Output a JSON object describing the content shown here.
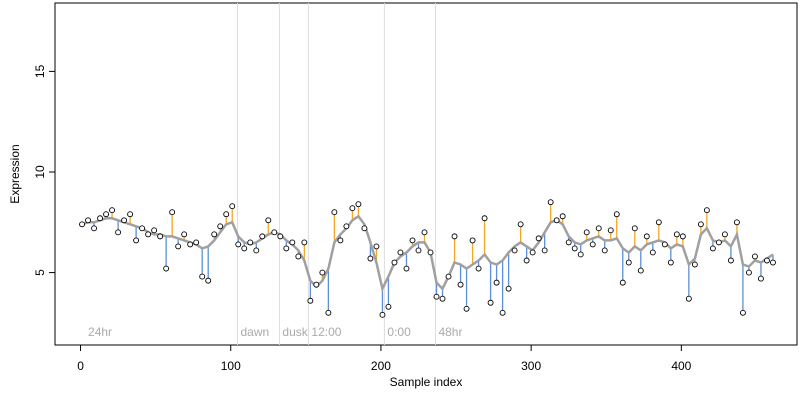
{
  "chart_data": {
    "type": "scatter",
    "xlabel": "Sample index",
    "ylabel": "Expression",
    "xlim": [
      -17,
      477
    ],
    "ylim": [
      1.4,
      18.4
    ],
    "xticks": [
      0,
      100,
      200,
      300,
      400
    ],
    "yticks": [
      5,
      10,
      15
    ],
    "point_color": "#000000",
    "fit_color": "#a0a0a0",
    "above_color": "#f5a623",
    "below_color": "#5b8fd9",
    "marker_color": "#dddddd",
    "markers": [
      {
        "x": 3,
        "label": "24hr",
        "line": false
      },
      {
        "x": 104.5,
        "label": "dawn",
        "line": true
      },
      {
        "x": 132.4,
        "label": "dusk",
        "line": true
      },
      {
        "x": 151.7,
        "label": "12:00",
        "line": true
      },
      {
        "x": 202.3,
        "label": "0:00",
        "line": true
      },
      {
        "x": 236.3,
        "label": "48hr",
        "line": true
      }
    ],
    "x": [
      1,
      5,
      9,
      13,
      17,
      21,
      25,
      29,
      33,
      37,
      41,
      45,
      49,
      53,
      57,
      61,
      65,
      69,
      73,
      77,
      81,
      85,
      89,
      93,
      97,
      101,
      105,
      109,
      113,
      117,
      121,
      125,
      129,
      133,
      137,
      141,
      145,
      149,
      153,
      157,
      161,
      165,
      169,
      173,
      177,
      181,
      185,
      189,
      193,
      197,
      201,
      205,
      209,
      213,
      217,
      221,
      225,
      229,
      233,
      237,
      241,
      245,
      249,
      253,
      257,
      261,
      265,
      269,
      273,
      277,
      281,
      285,
      289,
      293,
      297,
      301,
      305,
      309,
      313,
      317,
      321,
      325,
      329,
      333,
      337,
      341,
      345,
      349,
      353,
      357,
      361,
      365,
      369,
      373,
      377,
      381,
      385,
      389,
      393,
      397,
      401,
      405,
      409,
      413,
      417,
      421,
      425,
      429,
      433,
      437,
      441,
      445,
      449,
      453,
      457,
      461
    ],
    "values": [
      7.4,
      7.6,
      7.2,
      7.7,
      7.9,
      8.1,
      7.0,
      7.6,
      7.9,
      6.6,
      7.2,
      6.9,
      7.1,
      6.8,
      5.2,
      8.0,
      6.3,
      6.9,
      6.4,
      6.5,
      4.8,
      4.6,
      6.9,
      7.3,
      7.9,
      8.3,
      6.4,
      6.2,
      6.5,
      6.1,
      6.8,
      7.6,
      7.0,
      6.8,
      6.2,
      6.5,
      5.8,
      6.5,
      3.6,
      4.4,
      5.0,
      3.0,
      8.0,
      6.6,
      7.3,
      8.2,
      8.4,
      7.2,
      5.7,
      6.3,
      2.9,
      3.3,
      5.5,
      6.0,
      5.2,
      6.6,
      6.1,
      7.0,
      6.0,
      3.8,
      3.7,
      4.8,
      6.8,
      4.4,
      3.2,
      6.6,
      5.2,
      7.7,
      3.5,
      4.5,
      3.0,
      4.2,
      6.1,
      7.4,
      5.6,
      6.0,
      6.7,
      6.1,
      8.5,
      7.6,
      7.8,
      6.5,
      6.2,
      5.9,
      7.0,
      6.4,
      7.2,
      6.1,
      7.1,
      7.9,
      4.5,
      5.5,
      7.2,
      5.1,
      6.8,
      6.0,
      7.5,
      6.4,
      5.5,
      6.9,
      6.8,
      3.7,
      5.4,
      7.4,
      8.1,
      6.2,
      6.5,
      6.9,
      5.6,
      7.5,
      3.0,
      5.0,
      5.8,
      4.7,
      5.6,
      5.5
    ],
    "fit": [
      7.4,
      7.5,
      7.5,
      7.6,
      7.7,
      7.7,
      7.6,
      7.5,
      7.4,
      7.3,
      7.2,
      7.0,
      6.9,
      6.9,
      6.8,
      6.8,
      6.7,
      6.6,
      6.5,
      6.4,
      6.2,
      6.3,
      6.6,
      7.0,
      7.4,
      7.5,
      6.8,
      6.5,
      6.4,
      6.5,
      6.7,
      6.9,
      7.0,
      6.9,
      6.6,
      6.4,
      6.1,
      5.6,
      4.6,
      4.3,
      4.6,
      5.2,
      6.5,
      6.9,
      7.2,
      7.6,
      7.8,
      7.4,
      6.5,
      5.5,
      4.2,
      4.8,
      5.5,
      5.8,
      6.0,
      6.3,
      6.5,
      6.5,
      6.0,
      4.5,
      4.2,
      4.8,
      5.5,
      5.4,
      5.2,
      5.4,
      5.6,
      5.9,
      5.5,
      5.4,
      5.6,
      6.0,
      6.3,
      6.5,
      6.3,
      6.1,
      6.5,
      7.0,
      7.5,
      7.6,
      7.4,
      6.8,
      6.5,
      6.4,
      6.6,
      6.7,
      6.8,
      6.6,
      6.6,
      6.7,
      6.2,
      6.0,
      6.3,
      6.1,
      6.4,
      6.5,
      6.6,
      6.5,
      6.2,
      6.4,
      6.3,
      5.4,
      5.7,
      6.9,
      7.2,
      6.6,
      6.5,
      6.6,
      6.3,
      6.9,
      5.4,
      5.3,
      5.6,
      5.5,
      5.7,
      5.9
    ]
  }
}
